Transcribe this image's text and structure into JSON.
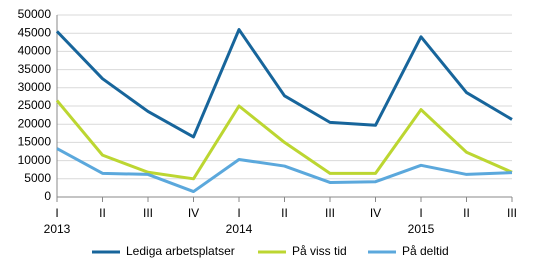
{
  "chart_data": {
    "type": "line",
    "categories": [
      "I",
      "II",
      "III",
      "IV",
      "I",
      "II",
      "III",
      "IV",
      "I",
      "II",
      "III"
    ],
    "category_years": [
      "2013",
      null,
      null,
      null,
      "2014",
      null,
      null,
      null,
      "2015",
      null,
      null
    ],
    "series": [
      {
        "name": "Lediga arbetsplatser",
        "color": "#17659b",
        "values": [
          45500,
          32500,
          23500,
          16500,
          46000,
          27800,
          20500,
          19700,
          44000,
          28700,
          21300
        ]
      },
      {
        "name": "På viss tid",
        "color": "#bcd631",
        "values": [
          26500,
          11500,
          6800,
          5000,
          25000,
          15000,
          6500,
          6500,
          24000,
          12300,
          6800
        ]
      },
      {
        "name": "På deltid",
        "color": "#5ba8dc",
        "values": [
          13300,
          6500,
          6200,
          1500,
          10300,
          8500,
          4000,
          4200,
          8700,
          6200,
          6700
        ]
      }
    ],
    "ylim": [
      0,
      50000
    ],
    "yticks": [
      0,
      5000,
      10000,
      15000,
      20000,
      25000,
      30000,
      35000,
      40000,
      45000,
      50000
    ],
    "grid": true,
    "legend": "bottom"
  }
}
